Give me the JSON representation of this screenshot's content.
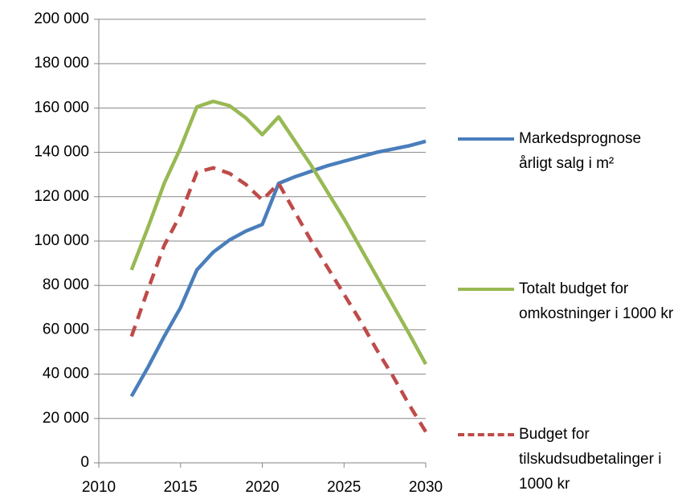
{
  "chart_data": {
    "type": "line",
    "x": [
      2012,
      2013,
      2014,
      2015,
      2016,
      2017,
      2018,
      2019,
      2020,
      2021,
      2022,
      2023,
      2024,
      2025,
      2026,
      2027,
      2028,
      2029,
      2030
    ],
    "series": [
      {
        "name": "Markedsprognose årligt salg i m²",
        "color": "#4a7ebb",
        "dash": false,
        "values": [
          30000,
          43000,
          57000,
          70000,
          87000,
          95000,
          100500,
          104500,
          107500,
          126000,
          129000,
          131500,
          134000,
          136000,
          138000,
          140000,
          141500,
          143000,
          145000
        ]
      },
      {
        "name": "Totalt budget for omkostninger i 1000 kr",
        "color": "#98b954",
        "dash": false,
        "values": [
          87000,
          106000,
          126000,
          142000,
          160500,
          163000,
          161000,
          155500,
          148000,
          156000,
          145000,
          134000,
          122000,
          110000,
          97000,
          84000,
          71000,
          58000,
          44500
        ]
      },
      {
        "name": "Budget for tilskudsudbetalinger i 1000 kr",
        "color": "#be4b48",
        "dash": true,
        "values": [
          57000,
          78000,
          98000,
          112000,
          131000,
          133000,
          130500,
          125500,
          118500,
          126000,
          113000,
          100000,
          88000,
          76000,
          64000,
          51000,
          39000,
          26000,
          14000
        ]
      }
    ],
    "xlim": [
      2010,
      2030
    ],
    "xticks": [
      2010,
      2015,
      2020,
      2025,
      2030
    ],
    "ylim": [
      0,
      200000
    ],
    "yticks": [
      0,
      {
        "value": 20000,
        "label": "20 000"
      },
      {
        "value": 40000,
        "label": "40 000"
      },
      {
        "value": 60000,
        "label": "60 000"
      },
      {
        "value": 80000,
        "label": "80 000"
      },
      {
        "value": 100000,
        "label": "100 000"
      },
      {
        "value": 120000,
        "label": "120 000"
      },
      {
        "value": 140000,
        "label": "140 000"
      },
      {
        "value": 160000,
        "label": "160 000"
      },
      {
        "value": 180000,
        "label": "180 000"
      },
      {
        "value": 200000,
        "label": "200 000"
      }
    ],
    "grid": true,
    "legend": "right"
  }
}
